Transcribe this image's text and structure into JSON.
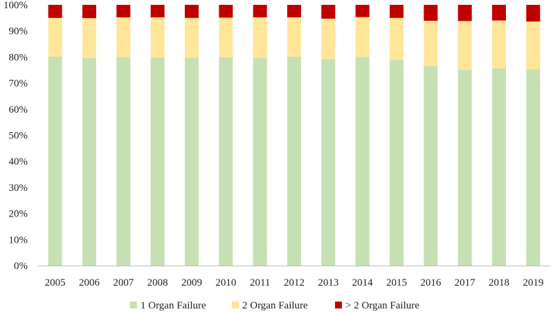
{
  "chart_data": {
    "type": "bar",
    "stacked": true,
    "title": "",
    "xlabel": "",
    "ylabel": "",
    "ylim": [
      0,
      100
    ],
    "yticks": [
      "0%",
      "10%",
      "20%",
      "30%",
      "40%",
      "50%",
      "60%",
      "70%",
      "80%",
      "90%",
      "100%"
    ],
    "grid": false,
    "legend_position": "bottom",
    "categories": [
      "2005",
      "2006",
      "2007",
      "2008",
      "2009",
      "2010",
      "2011",
      "2012",
      "2013",
      "2014",
      "2015",
      "2016",
      "2017",
      "2018",
      "2019"
    ],
    "series": [
      {
        "name": "1 Organ Failure",
        "color": "#c6e0b4",
        "values": [
          80.1,
          79.6,
          80.0,
          79.8,
          79.7,
          79.9,
          79.7,
          80.1,
          79.2,
          80.0,
          78.9,
          76.5,
          75.0,
          75.6,
          75.2
        ]
      },
      {
        "name": "2 Organ Failure",
        "color": "#ffe699",
        "values": [
          14.9,
          15.3,
          15.2,
          15.4,
          15.3,
          15.2,
          15.5,
          15.1,
          15.5,
          15.3,
          16.1,
          17.4,
          18.8,
          18.4,
          18.4
        ]
      },
      {
        "name": "> 2 Organ Failure",
        "color": "#c00000",
        "values": [
          5.0,
          5.1,
          4.8,
          4.8,
          5.0,
          4.9,
          4.8,
          4.8,
          5.3,
          4.7,
          5.0,
          6.1,
          6.2,
          6.0,
          6.4
        ]
      }
    ]
  }
}
